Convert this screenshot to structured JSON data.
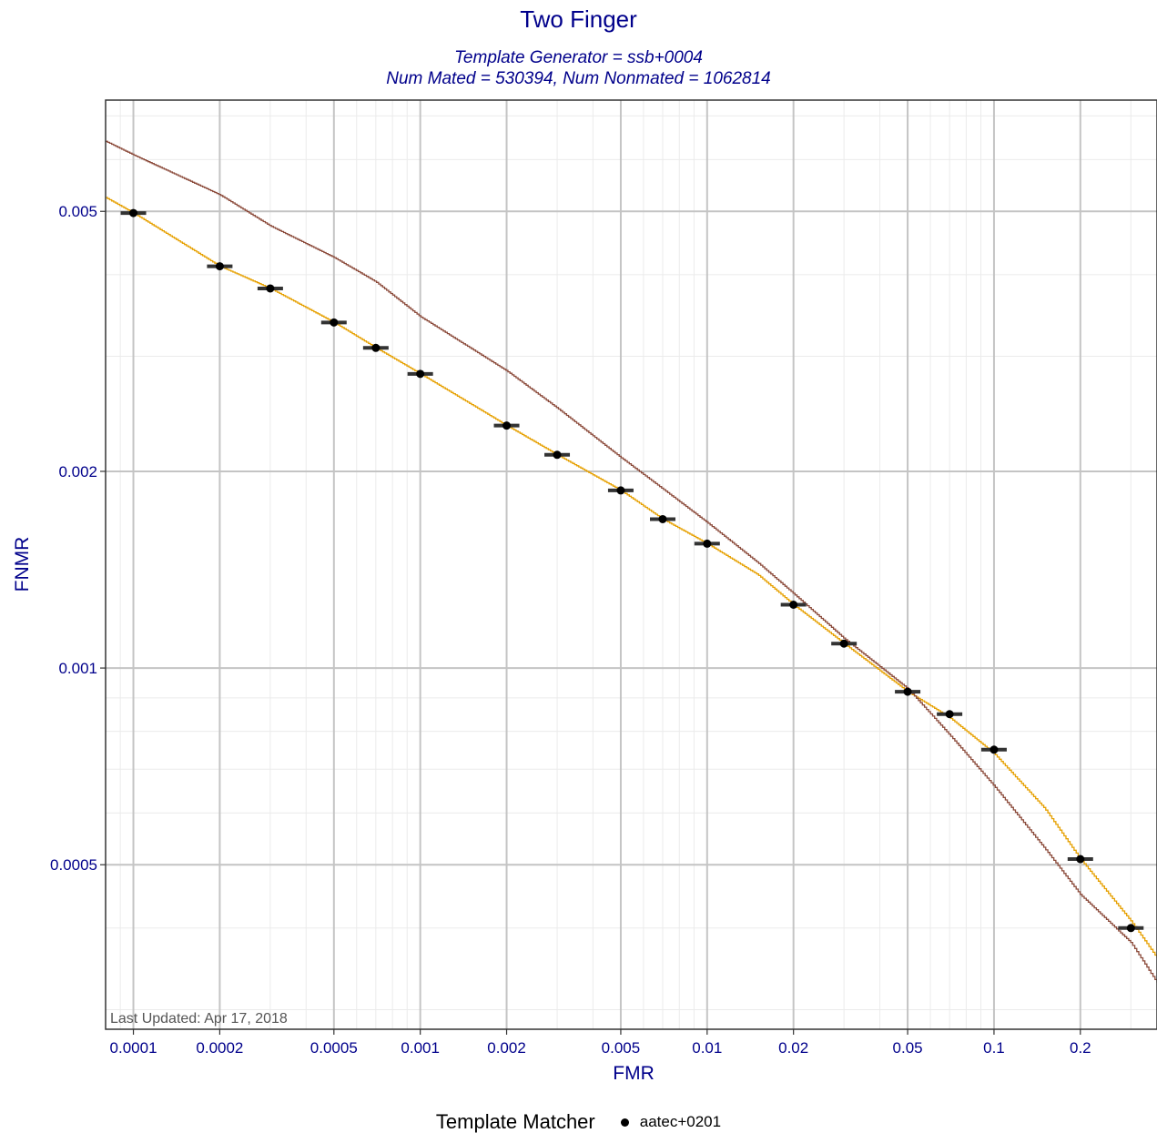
{
  "chart_data": {
    "type": "line",
    "title": "Two Finger",
    "subtitle_lines": [
      "Template Generator = ssb+0004",
      "Num Mated = 530394, Num Nonmated = 1062814"
    ],
    "xlabel": "FMR",
    "ylabel": "FNMR",
    "x_scale": "log",
    "y_scale": "log",
    "xlim": [
      8e-05,
      0.37
    ],
    "ylim": [
      0.00028,
      0.0074
    ],
    "x_ticks": [
      0.0001,
      0.0002,
      0.0005,
      0.001,
      0.002,
      0.005,
      0.01,
      0.02,
      0.05,
      0.1,
      0.2
    ],
    "x_tick_labels": [
      "0.0001",
      "0.0002",
      "0.0005",
      "0.001",
      "0.002",
      "0.005",
      "0.01",
      "0.02",
      "0.05",
      "0.1",
      "0.2"
    ],
    "y_ticks": [
      0.0005,
      0.001,
      0.002,
      0.005
    ],
    "y_tick_labels": [
      "0.0005",
      "0.001",
      "0.002",
      "0.005"
    ],
    "grid": true,
    "legend": {
      "title": "Template Matcher",
      "placement": "bottom",
      "items": [
        "aatec+0201"
      ]
    },
    "annotation": "Last Updated: Apr 17, 2018",
    "series": [
      {
        "color": "#e6a000",
        "x": [
          8e-05,
          0.0001,
          0.0002,
          0.0003,
          0.0005,
          0.0007,
          0.001,
          0.002,
          0.003,
          0.005,
          0.007,
          0.01,
          0.015,
          0.02,
          0.03,
          0.05,
          0.07,
          0.1,
          0.15,
          0.2,
          0.3,
          0.37
        ],
        "y": [
          0.00525,
          0.00497,
          0.00412,
          0.00381,
          0.00338,
          0.00309,
          0.00282,
          0.00235,
          0.00212,
          0.00187,
          0.00169,
          0.00155,
          0.00139,
          0.00125,
          0.00109,
          0.00092,
          0.00084,
          0.00074,
          0.00061,
          0.00051,
          0.00041,
          0.00036
        ]
      },
      {
        "color": "#8b4a3a",
        "x": [
          8e-05,
          0.0001,
          0.0002,
          0.0003,
          0.0005,
          0.0007,
          0.001,
          0.002,
          0.003,
          0.005,
          0.007,
          0.01,
          0.015,
          0.02,
          0.03,
          0.05,
          0.07,
          0.1,
          0.15,
          0.2,
          0.3,
          0.37
        ],
        "y": [
          0.0064,
          0.0061,
          0.0053,
          0.00475,
          0.00425,
          0.0039,
          0.00345,
          0.00285,
          0.0025,
          0.0021,
          0.00188,
          0.00167,
          0.00145,
          0.0013,
          0.00111,
          0.00093,
          0.00079,
          0.00066,
          0.00053,
          0.00045,
          0.00038,
          0.00033
        ]
      }
    ],
    "operating_points": {
      "name": "aatec+0201",
      "x": [
        0.0001,
        0.0002,
        0.0003,
        0.0005,
        0.0007,
        0.001,
        0.002,
        0.003,
        0.005,
        0.007,
        0.01,
        0.02,
        0.03,
        0.05,
        0.07,
        0.1,
        0.2,
        0.3
      ],
      "y": [
        0.00497,
        0.00412,
        0.00381,
        0.00338,
        0.00309,
        0.00282,
        0.00235,
        0.00212,
        0.00187,
        0.00169,
        0.00155,
        0.00125,
        0.00109,
        0.00092,
        0.00085,
        0.00075,
        0.00051,
        0.0004
      ]
    }
  }
}
